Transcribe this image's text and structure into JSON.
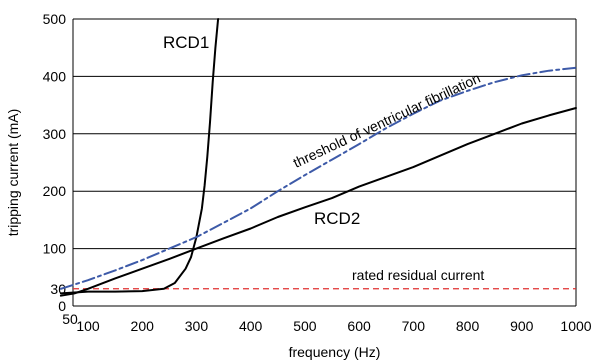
{
  "chart_data": {
    "type": "line",
    "title": "",
    "xlabel": "frequency (Hz)",
    "ylabel": "tripping current (mA)",
    "xlim": [
      50,
      1000
    ],
    "ylim": [
      0,
      500
    ],
    "x_ticks": [
      50,
      100,
      200,
      300,
      400,
      500,
      600,
      700,
      800,
      900,
      1000
    ],
    "y_ticks": [
      0,
      30,
      100,
      200,
      300,
      400,
      500
    ],
    "grid_y": [
      100,
      200,
      300,
      400,
      500
    ],
    "series": [
      {
        "name": "RCD1",
        "color": "#000000",
        "style": "solid",
        "points": [
          [
            50,
            22
          ],
          [
            100,
            25
          ],
          [
            150,
            25
          ],
          [
            200,
            26
          ],
          [
            240,
            30
          ],
          [
            260,
            40
          ],
          [
            280,
            65
          ],
          [
            290,
            85
          ],
          [
            300,
            120
          ],
          [
            310,
            170
          ],
          [
            315,
            210
          ],
          [
            320,
            260
          ],
          [
            325,
            320
          ],
          [
            330,
            390
          ],
          [
            335,
            450
          ],
          [
            340,
            500
          ]
        ]
      },
      {
        "name": "RCD2",
        "color": "#000000",
        "style": "solid",
        "points": [
          [
            50,
            18
          ],
          [
            75,
            22
          ],
          [
            100,
            30
          ],
          [
            150,
            48
          ],
          [
            200,
            65
          ],
          [
            250,
            82
          ],
          [
            300,
            100
          ],
          [
            350,
            118
          ],
          [
            400,
            135
          ],
          [
            450,
            155
          ],
          [
            500,
            172
          ],
          [
            550,
            188
          ],
          [
            600,
            208
          ],
          [
            650,
            225
          ],
          [
            700,
            242
          ],
          [
            750,
            262
          ],
          [
            800,
            282
          ],
          [
            850,
            300
          ],
          [
            900,
            318
          ],
          [
            950,
            332
          ],
          [
            1000,
            345
          ]
        ]
      },
      {
        "name": "threshold of ventricular fibrillation",
        "color": "#3d5aa8",
        "style": "dashdot",
        "points": [
          [
            50,
            30
          ],
          [
            100,
            45
          ],
          [
            150,
            62
          ],
          [
            200,
            80
          ],
          [
            250,
            100
          ],
          [
            300,
            120
          ],
          [
            350,
            145
          ],
          [
            400,
            170
          ],
          [
            450,
            200
          ],
          [
            500,
            228
          ],
          [
            550,
            255
          ],
          [
            600,
            282
          ],
          [
            650,
            310
          ],
          [
            700,
            335
          ],
          [
            750,
            358
          ],
          [
            800,
            375
          ],
          [
            850,
            390
          ],
          [
            900,
            402
          ],
          [
            950,
            410
          ],
          [
            1000,
            415
          ]
        ]
      }
    ],
    "reference_line": {
      "label": "rated residual current",
      "value": 30,
      "color": "#e03030"
    },
    "annotations": {
      "rcd1": "RCD1",
      "rcd2": "RCD2",
      "threshold": "threshold of ventricular fibrillation",
      "rated": "rated residual current"
    }
  }
}
